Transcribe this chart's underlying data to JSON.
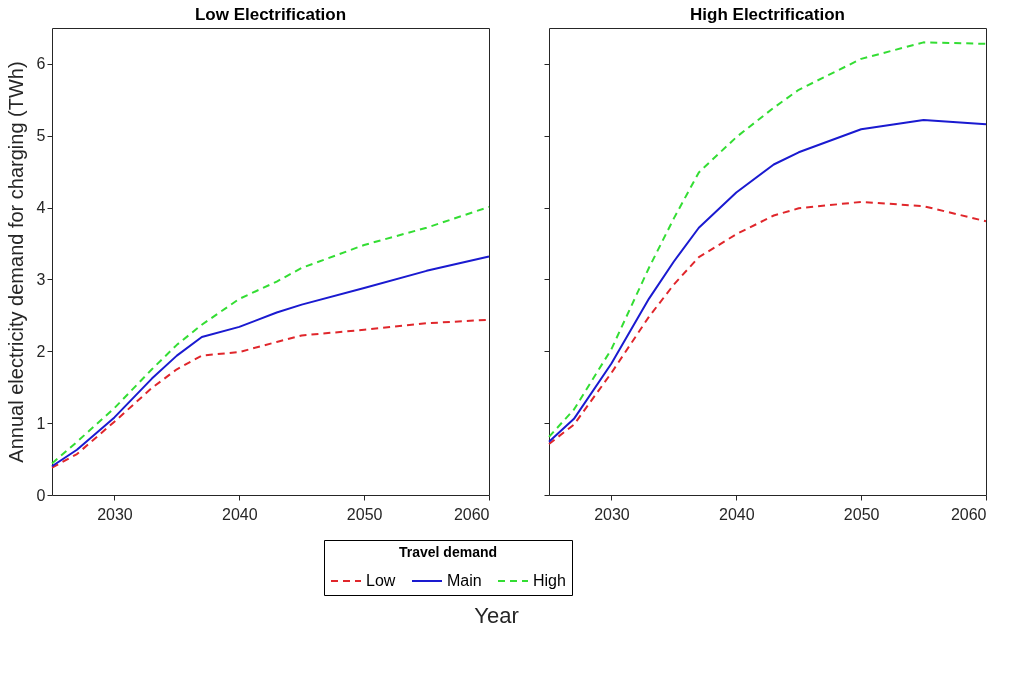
{
  "chart_data": [
    {
      "type": "line",
      "title": "Low Electrification",
      "ylabel": "Annual electricity demand for charging (TWh)",
      "xlabel": "Year",
      "legend_title": "Travel demand",
      "legend": "bottom",
      "grid": false,
      "xlim": [
        2025,
        2060
      ],
      "ylim": [
        0,
        6.5
      ],
      "xticks": [
        2030,
        2040,
        2050,
        2060
      ],
      "yticks": [
        0,
        1,
        2,
        3,
        4,
        5,
        6
      ],
      "x": [
        2025,
        2027,
        2030,
        2033,
        2035,
        2037,
        2040,
        2043,
        2045,
        2050,
        2055,
        2060
      ],
      "series": [
        {
          "name": "Low",
          "color": "#e0262b",
          "line_style": "dashed",
          "values": [
            0.38,
            0.57,
            1.02,
            1.49,
            1.75,
            1.94,
            1.99,
            2.13,
            2.22,
            2.3,
            2.39,
            2.44
          ]
        },
        {
          "name": "Main",
          "color": "#1a1ad0",
          "line_style": "solid",
          "values": [
            0.4,
            0.63,
            1.08,
            1.62,
            1.94,
            2.2,
            2.34,
            2.54,
            2.65,
            2.88,
            3.12,
            3.32
          ]
        },
        {
          "name": "High",
          "color": "#33dd33",
          "line_style": "dashed",
          "values": [
            0.44,
            0.74,
            1.21,
            1.75,
            2.09,
            2.37,
            2.73,
            2.97,
            3.16,
            3.48,
            3.72,
            4.01
          ]
        }
      ]
    },
    {
      "type": "line",
      "title": "High Electrification",
      "legend": "bottom",
      "grid": false,
      "tick_labels": "x",
      "xlim": [
        2025,
        2060
      ],
      "ylim": [
        0,
        6.5
      ],
      "xticks": [
        2030,
        2040,
        2050,
        2060
      ],
      "yticks": [
        0,
        1,
        2,
        3,
        4,
        5,
        6
      ],
      "x": [
        2025,
        2027,
        2030,
        2033,
        2035,
        2037,
        2040,
        2043,
        2045,
        2050,
        2055,
        2060
      ],
      "series": [
        {
          "name": "Low",
          "color": "#e0262b",
          "line_style": "dashed",
          "values": [
            0.71,
            0.98,
            1.7,
            2.48,
            2.93,
            3.31,
            3.63,
            3.89,
            3.99,
            4.08,
            4.02,
            3.81
          ]
        },
        {
          "name": "Main",
          "color": "#1a1ad0",
          "line_style": "solid",
          "values": [
            0.74,
            1.06,
            1.83,
            2.73,
            3.25,
            3.72,
            4.21,
            4.6,
            4.77,
            5.09,
            5.22,
            5.16
          ]
        },
        {
          "name": "High",
          "color": "#33dd33",
          "line_style": "dashed",
          "values": [
            0.81,
            1.19,
            2.03,
            3.16,
            3.85,
            4.49,
            4.98,
            5.39,
            5.64,
            6.07,
            6.3,
            6.28
          ]
        }
      ]
    }
  ]
}
